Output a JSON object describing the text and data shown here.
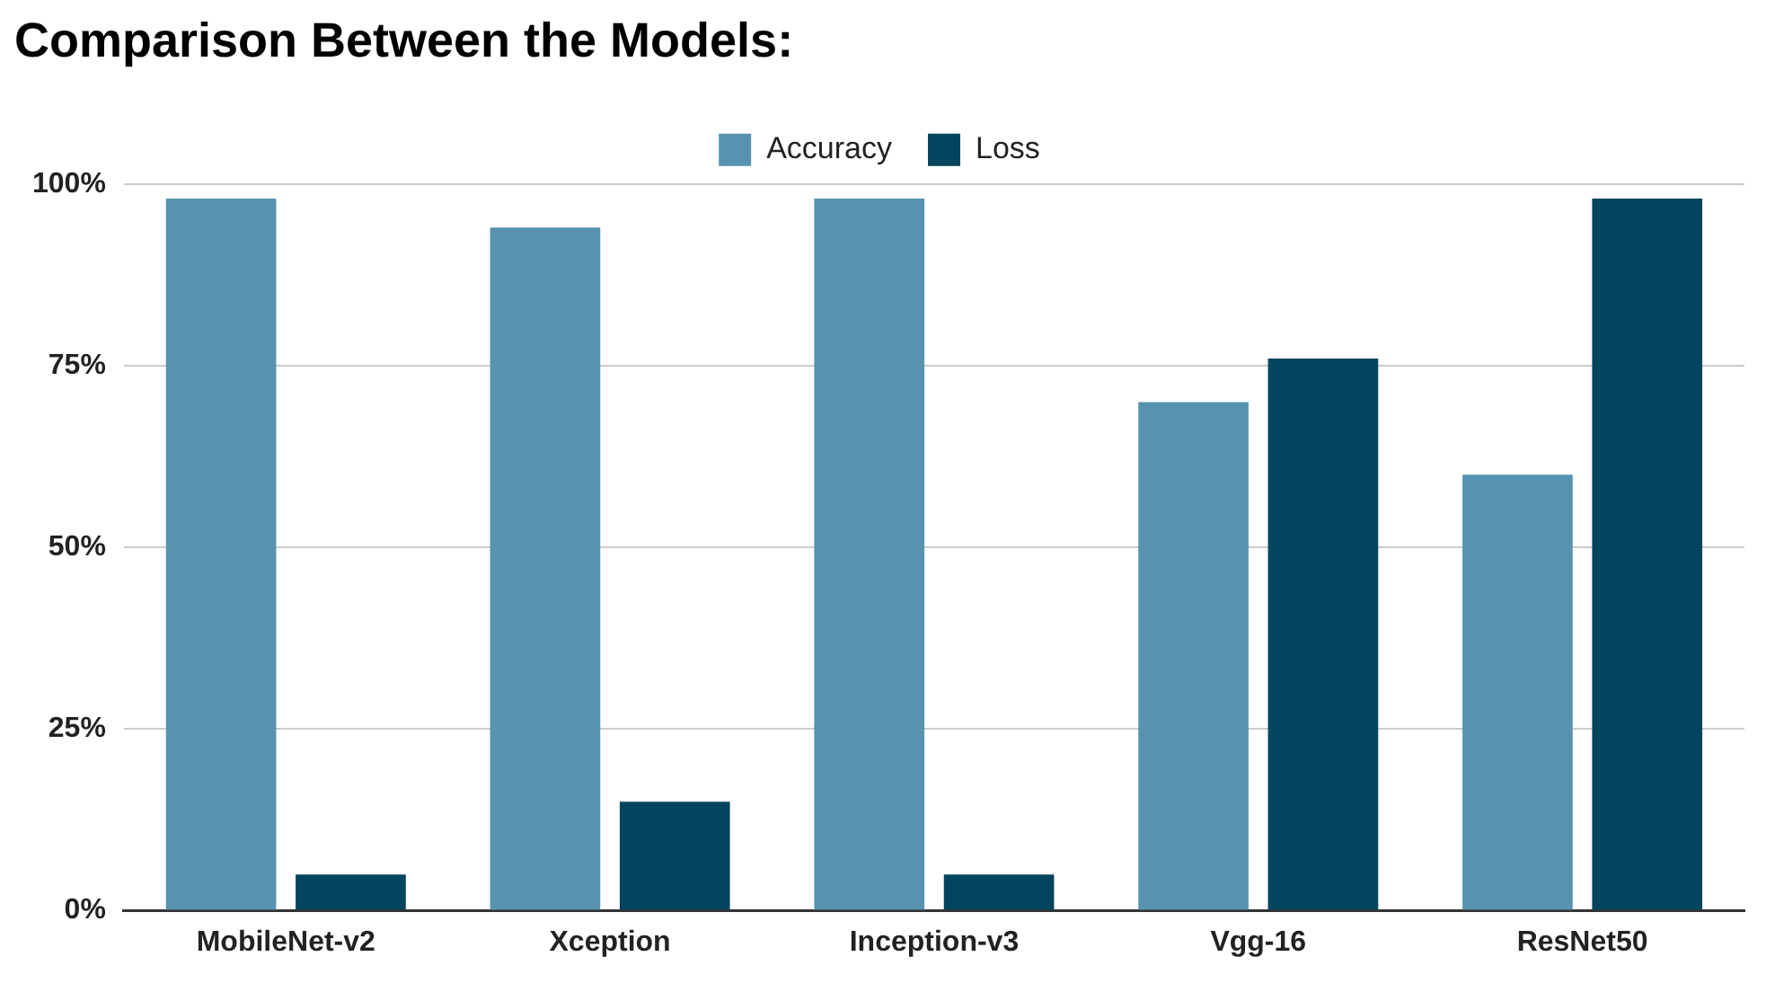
{
  "chart_data": {
    "type": "bar",
    "title": "Comparison Between the Models:",
    "categories": [
      "MobileNet-v2",
      "Xception",
      "Inception-v3",
      "Vgg-16",
      "ResNet50"
    ],
    "series": [
      {
        "name": "Accuracy",
        "color": "#5793b0",
        "values": [
          98,
          94,
          98,
          70,
          60
        ]
      },
      {
        "name": "Loss",
        "color": "#03445f",
        "values": [
          5,
          15,
          5,
          76,
          98
        ]
      }
    ],
    "ylim": [
      0,
      100
    ],
    "yticks": [
      {
        "value": 0,
        "label": "0%"
      },
      {
        "value": 25,
        "label": "25%"
      },
      {
        "value": 50,
        "label": "50%"
      },
      {
        "value": 75,
        "label": "75%"
      },
      {
        "value": 100,
        "label": "100%"
      }
    ],
    "grid": "y",
    "legend": "top"
  }
}
